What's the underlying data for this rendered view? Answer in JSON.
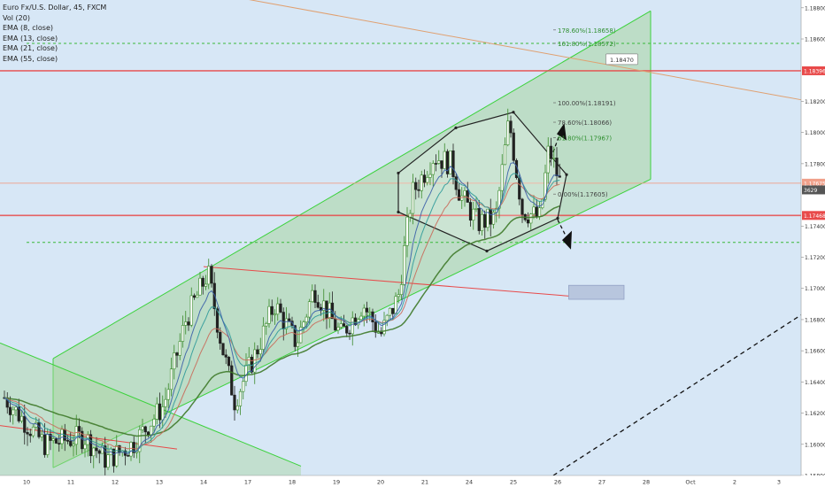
{
  "legend": {
    "symbol_line": "Euro Fx/U.S. Dollar, 45, FXCM",
    "indicators": [
      "Vol (20)",
      "EMA (8, close)",
      "EMA (13, close)",
      "EMA (21, close)",
      "EMA (55, close)"
    ]
  },
  "colors": {
    "background": "#d7e7f6",
    "channel_fill": "#a8d5a0",
    "channel_line": "#3cd23c",
    "red_level": "#e84a4a",
    "salmon_level": "#f0a08a",
    "orange_trend": "#e0a070",
    "ema8": "#3b5fa8",
    "ema13": "#2f9a9a",
    "ema21": "#c96a5a",
    "ema55": "#3f7a2a",
    "candle_up": "#3a8a2a",
    "candle_down": "#222222"
  },
  "chart_data": {
    "type": "candlestick",
    "ylim": [
      1.158,
      1.1885
    ],
    "x_axis": {
      "ticks": [
        "10",
        "11",
        "12",
        "13",
        "14",
        "17",
        "18",
        "19",
        "20",
        "21",
        "24",
        "25",
        "26",
        "27",
        "28",
        "Oct",
        "2",
        "3"
      ],
      "tick_positions": [
        0.2,
        1.2,
        2.2,
        3.2,
        4.2,
        5.2,
        6.2,
        7.2,
        8.2,
        9.2,
        10.2,
        11.2,
        12.2,
        13.2,
        14.2,
        15.2,
        16.2,
        17.2
      ],
      "xlim": [
        -0.4,
        17.7
      ]
    },
    "y_axis": {
      "ticks": [
        "1.18800",
        "1.18600",
        "1.18200",
        "1.18000",
        "1.17800",
        "1.17400",
        "1.17200",
        "1.17000",
        "1.16800",
        "1.16600",
        "1.16400",
        "1.16200",
        "1.16000",
        "1.15800"
      ],
      "tick_values": [
        1.188,
        1.186,
        1.182,
        1.18,
        1.178,
        1.174,
        1.172,
        1.17,
        1.168,
        1.166,
        1.164,
        1.162,
        1.16,
        1.158
      ]
    },
    "price_badges": [
      {
        "label": "1.18396",
        "value": 1.18396,
        "color": "#e84a4a"
      },
      {
        "label": "1.17675",
        "value": 1.17675,
        "color": "#f0a08a"
      },
      {
        "label": "3629",
        "value": 1.17632,
        "color": "#555555"
      },
      {
        "label": "1.17468",
        "value": 1.17468,
        "color": "#e84a4a"
      }
    ],
    "fib_labels": [
      {
        "text": "178.60%(1.18658)",
        "value": 1.18658
      },
      {
        "text": "161.80%(1.18572)",
        "value": 1.18572
      },
      {
        "text": "100.00%(1.18191)",
        "value": 1.18191
      },
      {
        "text": "78.60%(1.18066)",
        "value": 1.18066
      },
      {
        "text": "61.80%(1.17967)",
        "value": 1.17967
      },
      {
        "text": "0.00%(1.17605)",
        "value": 1.17605
      }
    ],
    "callouts": [
      {
        "text": "1.18470",
        "value": 1.1847
      },
      {
        "text": "1.16971",
        "value": 1.16971
      }
    ],
    "levels": [
      {
        "name": "red-resistance",
        "value": 1.18396,
        "style": "solid"
      },
      {
        "name": "red-support",
        "value": 1.17468,
        "style": "solid"
      },
      {
        "name": "salmon-price",
        "value": 1.17675,
        "style": "solid"
      },
      {
        "name": "green-dashed-upper",
        "value": 1.18572,
        "style": "dashed"
      },
      {
        "name": "green-dashed-lower",
        "value": 1.17295,
        "style": "dashed"
      }
    ]
  }
}
